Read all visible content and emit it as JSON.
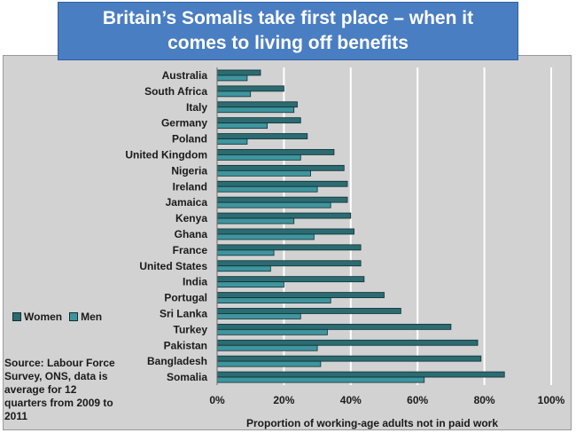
{
  "title": "Britain’s Somalis take first place – when it comes to living off benefits",
  "colors": {
    "women": "#2c6b72",
    "men": "#3f959e",
    "bar_border": "#0e2f33",
    "gridline": "#ffffff",
    "title_bg": "#4a7ec3",
    "panel_bg": "#d2d2d2"
  },
  "legend": {
    "women_label": "Women",
    "men_label": "Men"
  },
  "source_note": "Source: Labour Force Survey, ONS, data is average for 12 quarters from 2009 to 2011",
  "chart_data": {
    "type": "bar",
    "orientation": "horizontal",
    "title": "Britain’s Somalis take first place – when it comes to living off benefits",
    "xlabel": "Proportion of working-age adults not in paid work",
    "ylabel": "",
    "xlim": [
      0,
      100
    ],
    "x_ticks": [
      "0%",
      "20%",
      "40%",
      "60%",
      "80%",
      "100%"
    ],
    "grid": true,
    "legend_position": "left",
    "categories": [
      "Australia",
      "South Africa",
      "Italy",
      "Germany",
      "Poland",
      "United Kingdom",
      "Nigeria",
      "Ireland",
      "Jamaica",
      "Kenya",
      "Ghana",
      "France",
      "United States",
      "India",
      "Portugal",
      "Sri Lanka",
      "Turkey",
      "Pakistan",
      "Bangladesh",
      "Somalia"
    ],
    "series": [
      {
        "name": "Women",
        "values": [
          13,
          20,
          24,
          25,
          27,
          35,
          38,
          39,
          39,
          40,
          41,
          43,
          43,
          44,
          50,
          55,
          70,
          78,
          79,
          86
        ]
      },
      {
        "name": "Men",
        "values": [
          9,
          10,
          23,
          15,
          9,
          25,
          28,
          30,
          34,
          23,
          29,
          17,
          16,
          20,
          34,
          25,
          33,
          30,
          31,
          62
        ]
      }
    ]
  }
}
